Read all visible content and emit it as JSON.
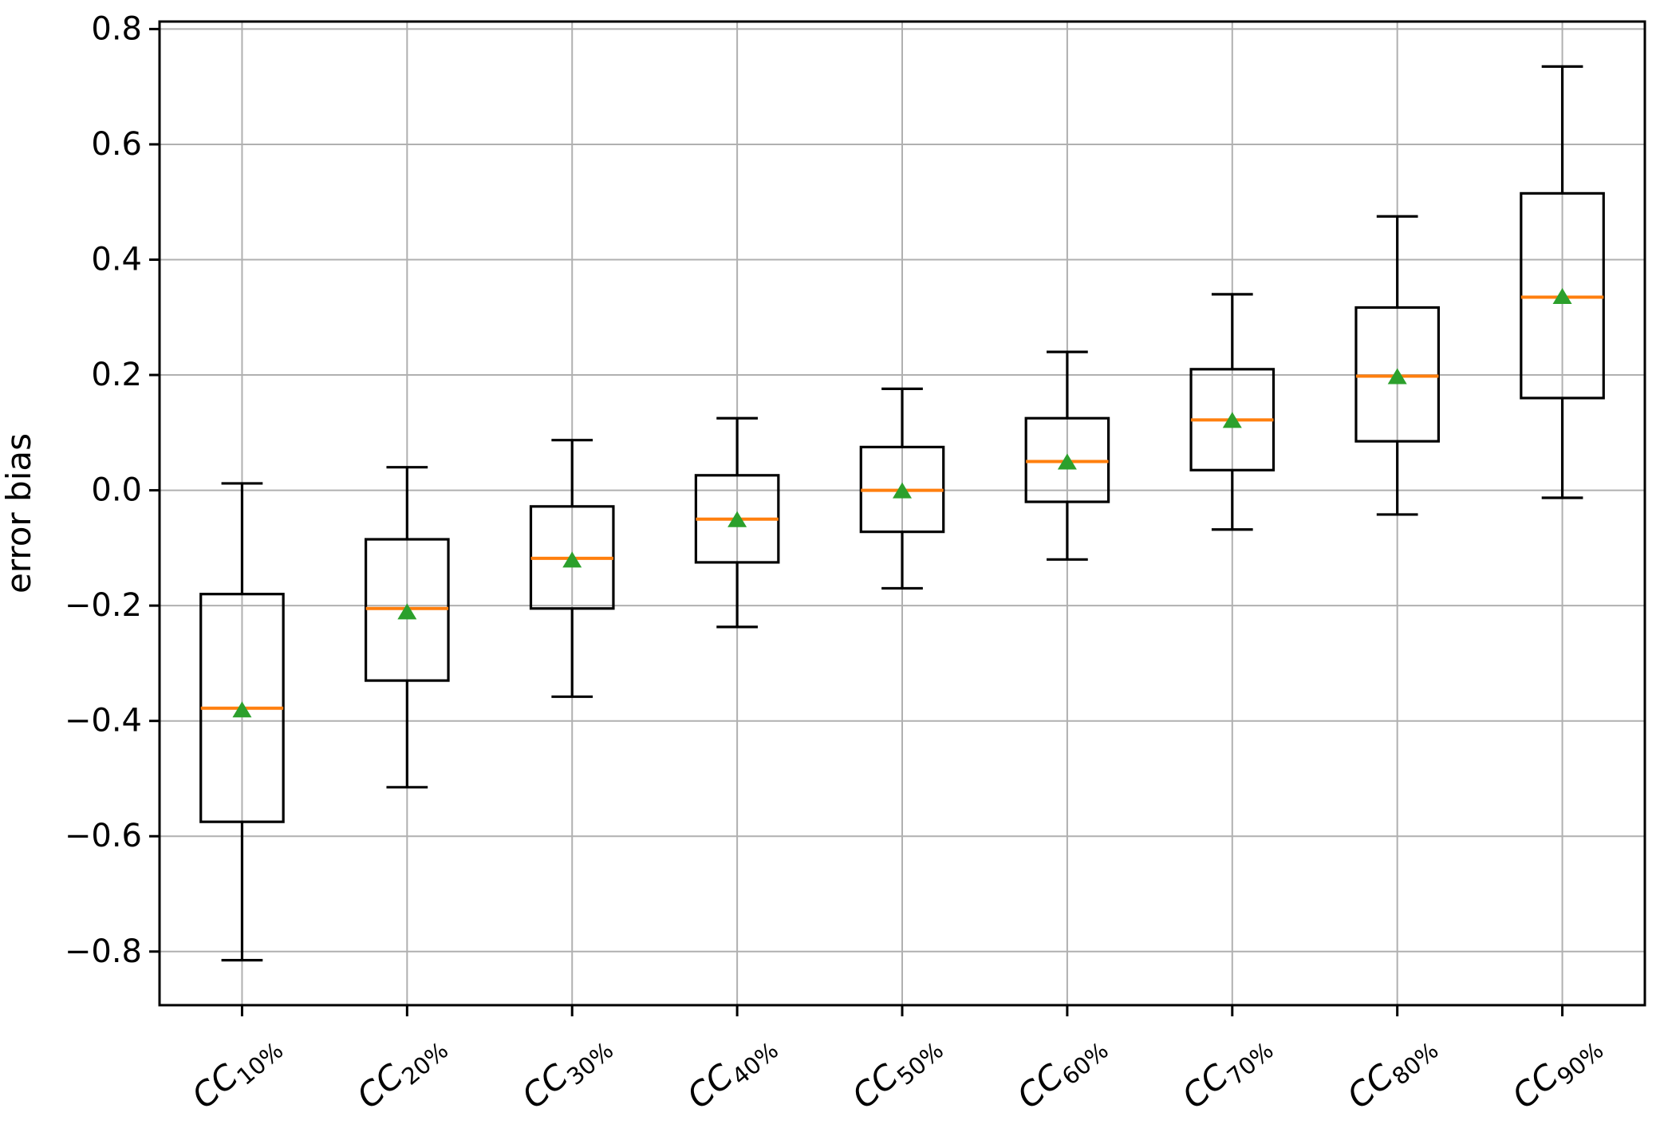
{
  "chart_data": {
    "type": "boxplot",
    "title": "",
    "xlabel": "",
    "ylabel": "error bias",
    "grid": true,
    "ylim": [
      -0.893,
      0.813
    ],
    "yticks": [
      0.8,
      0.6,
      0.4,
      0.2,
      0.0,
      -0.2,
      -0.4,
      -0.6,
      -0.8
    ],
    "ytick_labels": [
      "0.8",
      "0.6",
      "0.4",
      "0.2",
      "0.0",
      "−0.2",
      "−0.4",
      "−0.6",
      "−0.8"
    ],
    "categories": [
      {
        "base": "CC",
        "sub": "10%"
      },
      {
        "base": "CC",
        "sub": "20%"
      },
      {
        "base": "CC",
        "sub": "30%"
      },
      {
        "base": "CC",
        "sub": "40%"
      },
      {
        "base": "CC",
        "sub": "50%"
      },
      {
        "base": "CC",
        "sub": "60%"
      },
      {
        "base": "CC",
        "sub": "70%"
      },
      {
        "base": "CC",
        "sub": "80%"
      },
      {
        "base": "CC",
        "sub": "90%"
      }
    ],
    "boxes": [
      {
        "label": "CC10%",
        "whislo": -0.815,
        "q1": -0.575,
        "med": -0.378,
        "mean": -0.38,
        "q3": -0.18,
        "whishi": 0.012
      },
      {
        "label": "CC20%",
        "whislo": -0.515,
        "q1": -0.33,
        "med": -0.205,
        "mean": -0.21,
        "q3": -0.085,
        "whishi": 0.04
      },
      {
        "label": "CC30%",
        "whislo": -0.358,
        "q1": -0.205,
        "med": -0.118,
        "mean": -0.12,
        "q3": -0.028,
        "whishi": 0.087
      },
      {
        "label": "CC40%",
        "whislo": -0.237,
        "q1": -0.125,
        "med": -0.05,
        "mean": -0.05,
        "q3": 0.026,
        "whishi": 0.125
      },
      {
        "label": "CC50%",
        "whislo": -0.17,
        "q1": -0.072,
        "med": 0.0,
        "mean": 0.0,
        "q3": 0.075,
        "whishi": 0.176
      },
      {
        "label": "CC60%",
        "whislo": -0.12,
        "q1": -0.02,
        "med": 0.05,
        "mean": 0.05,
        "q3": 0.125,
        "whishi": 0.24
      },
      {
        "label": "CC70%",
        "whislo": -0.068,
        "q1": 0.035,
        "med": 0.122,
        "mean": 0.122,
        "q3": 0.21,
        "whishi": 0.34
      },
      {
        "label": "CC80%",
        "whislo": -0.042,
        "q1": 0.085,
        "med": 0.198,
        "mean": 0.198,
        "q3": 0.317,
        "whishi": 0.475
      },
      {
        "label": "CC90%",
        "whislo": -0.013,
        "q1": 0.16,
        "med": 0.335,
        "mean": 0.337,
        "q3": 0.515,
        "whishi": 0.735
      }
    ],
    "colors": {
      "box": "#000000",
      "median": "#ff7f0e",
      "mean": "#2ca02c",
      "grid": "#b0b0b0",
      "background": "#ffffff",
      "spine": "#000000"
    },
    "legend": null
  }
}
